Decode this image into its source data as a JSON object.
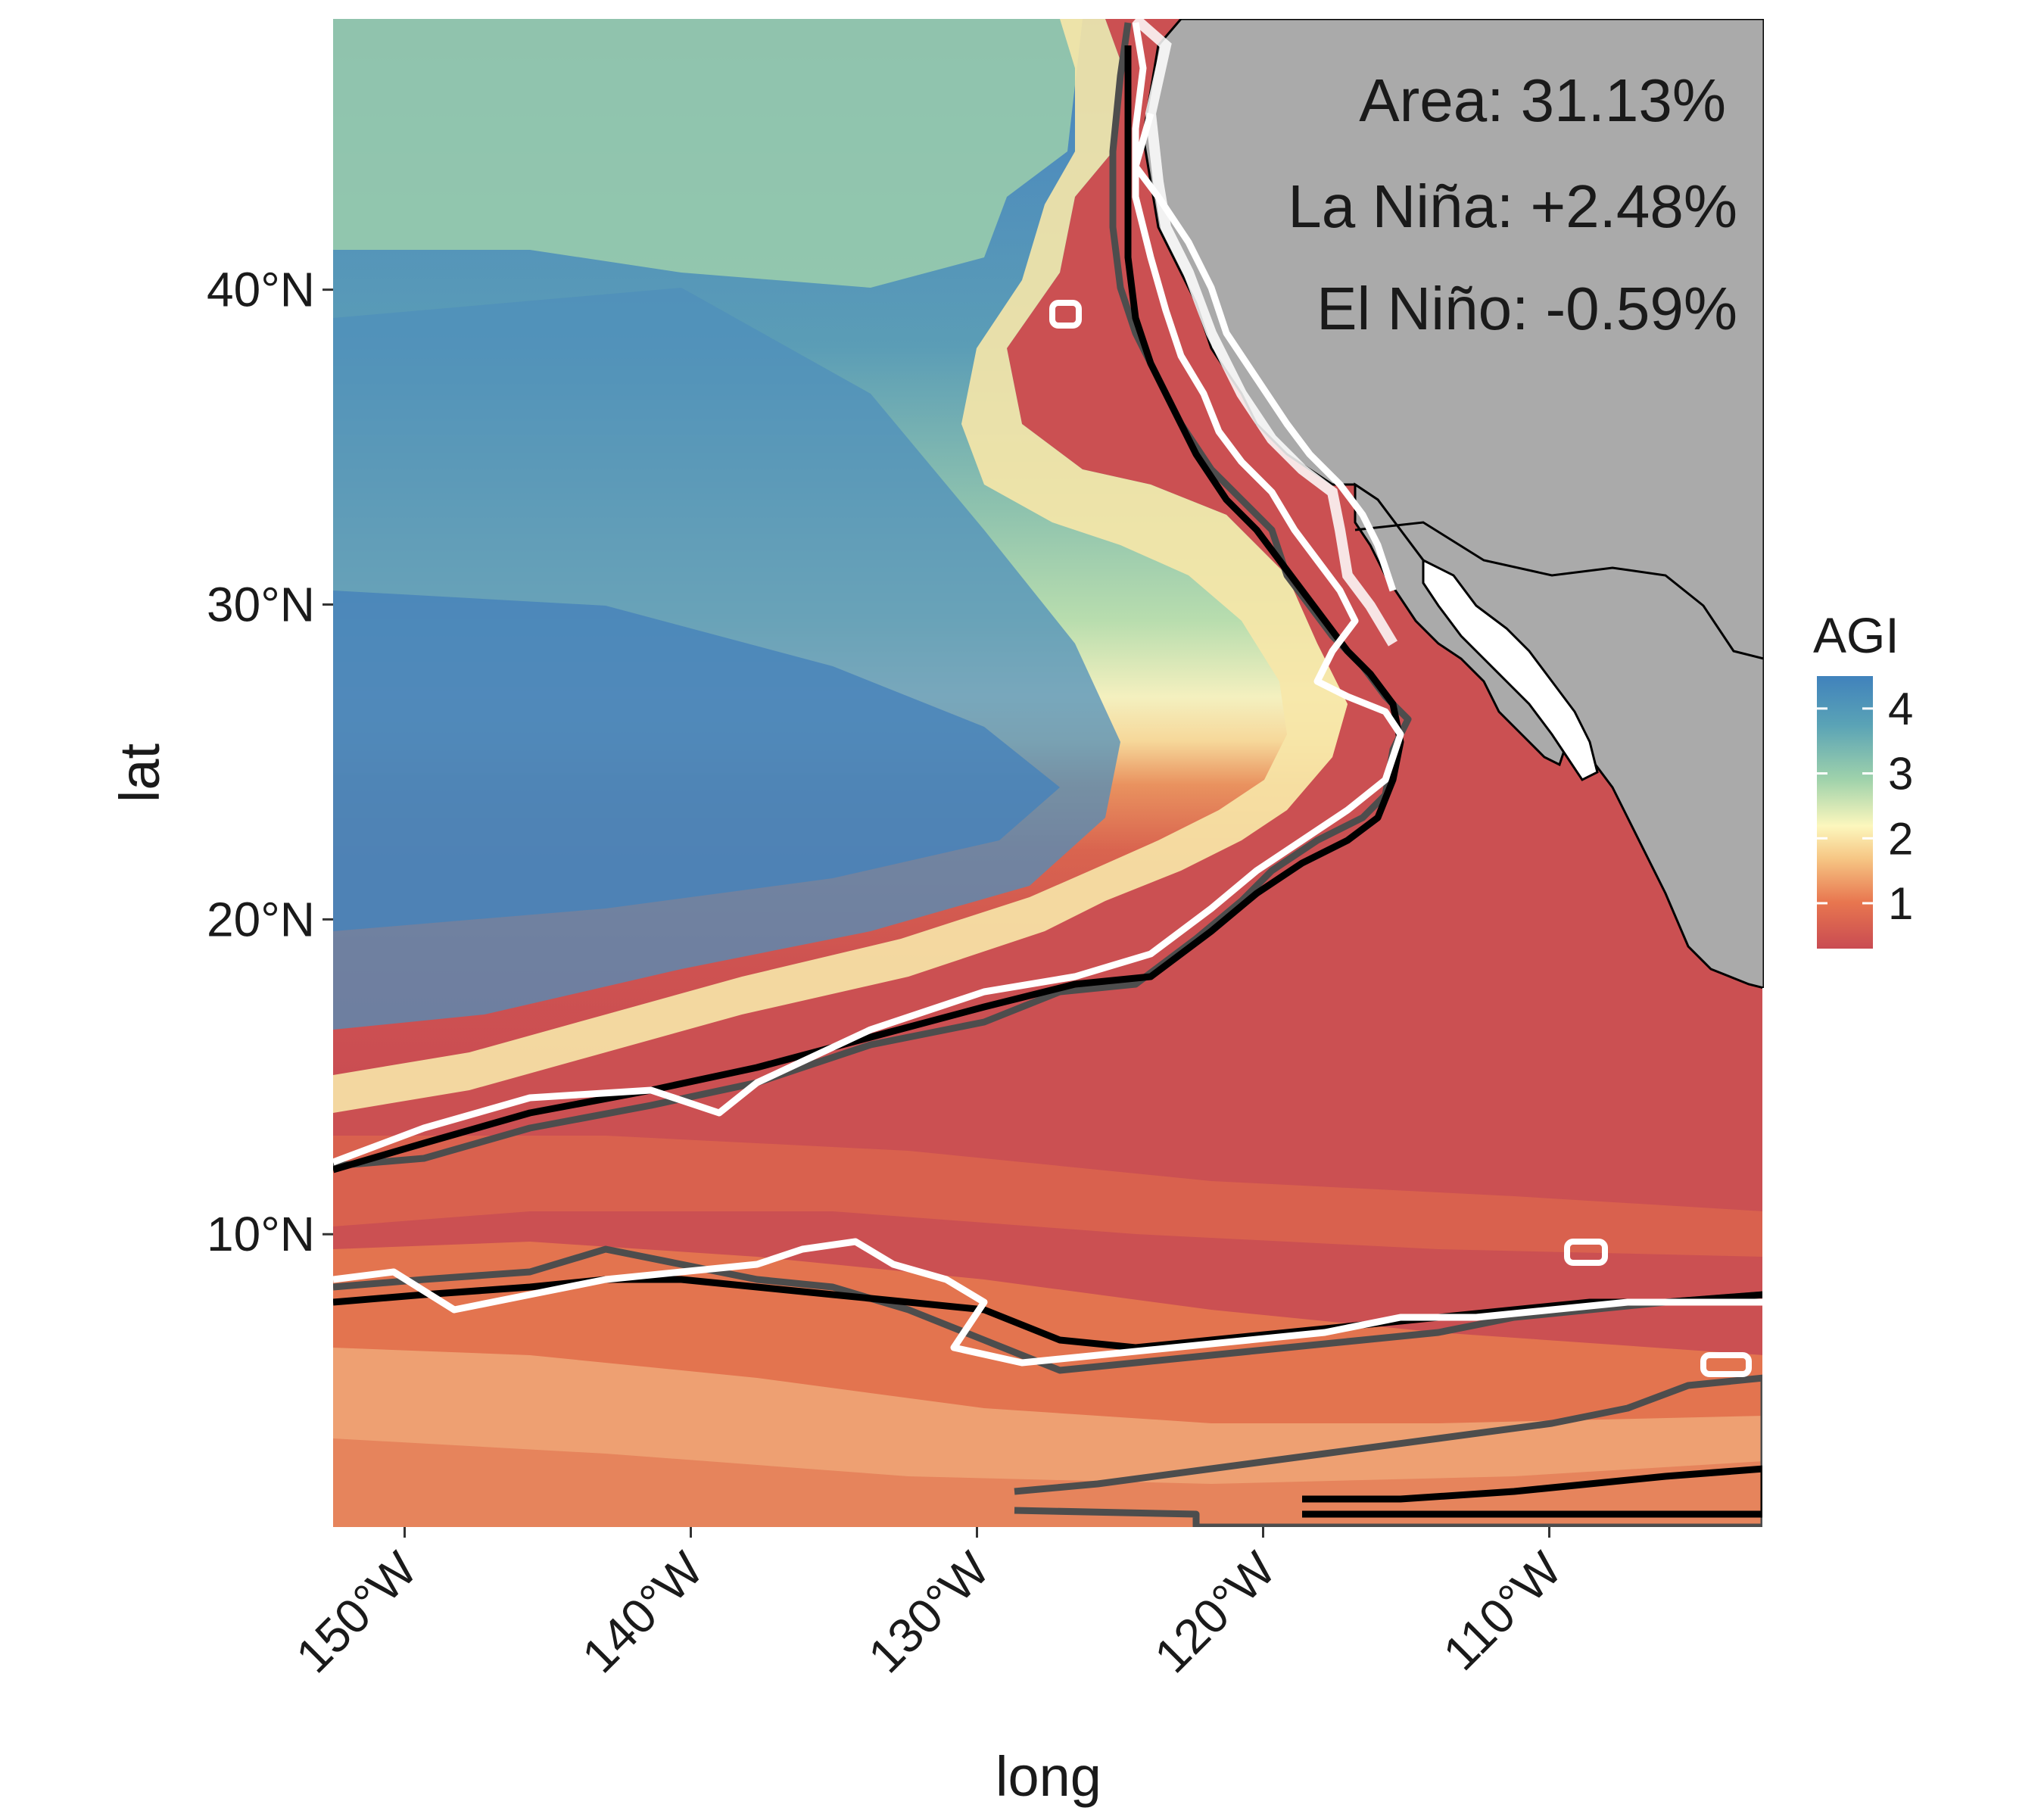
{
  "map": {
    "x_axis": {
      "title": "long",
      "ticks": [
        {
          "value": -150,
          "label": "150°W"
        },
        {
          "value": -140,
          "label": "140°W"
        },
        {
          "value": -130,
          "label": "130°W"
        },
        {
          "value": -120,
          "label": "120°W"
        },
        {
          "value": -110,
          "label": "110°W"
        }
      ],
      "range": [
        -152.5,
        -102.5
      ]
    },
    "y_axis": {
      "title": "lat",
      "ticks": [
        {
          "value": 10,
          "label": "10°N"
        },
        {
          "value": 20,
          "label": "20°N"
        },
        {
          "value": 30,
          "label": "30°N"
        },
        {
          "value": 40,
          "label": "40°N"
        }
      ],
      "range": [
        0.7,
        48.6
      ]
    },
    "annotations": {
      "area": "Area: 31.13%",
      "la_nina": "La Niña: +2.48%",
      "el_nino": "El Niño: -0.59%"
    },
    "legend": {
      "title": "AGI",
      "ticks": [
        {
          "value": 1,
          "label": "1"
        },
        {
          "value": 2,
          "label": "2"
        },
        {
          "value": 3,
          "label": "3"
        },
        {
          "value": 4,
          "label": "4"
        }
      ],
      "range": [
        0.3,
        4.5
      ],
      "colors": [
        "#c94b52",
        "#e8764f",
        "#f6c684",
        "#fcf7bd",
        "#9fd2ab",
        "#5aa3b6",
        "#4082bc"
      ]
    },
    "colors": {
      "land": "#aaaaaa",
      "coastline": "#000000",
      "contour_neutral": "#000000",
      "contour_la_nina": "#ffffff",
      "contour_el_nino": "#4d4d4d"
    }
  }
}
